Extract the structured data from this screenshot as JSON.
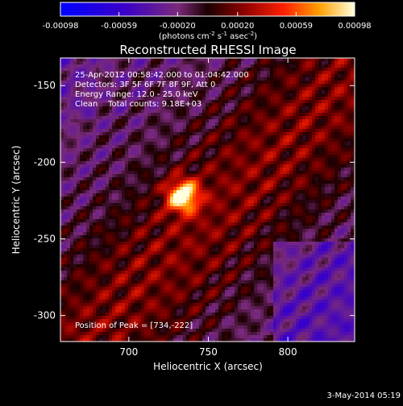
{
  "chart_data": {
    "type": "heatmap",
    "title": "Reconstructed RHESSI Image",
    "xlabel": "Heliocentric X (arcsec)",
    "ylabel": "Heliocentric Y (arcsec)",
    "xlim": [
      657,
      842
    ],
    "ylim": [
      -317,
      -132
    ],
    "x_ticks": [
      700,
      750,
      800
    ],
    "y_ticks": [
      -300,
      -250,
      -200,
      -150
    ],
    "annotations": [
      "25-Apr-2012 00:58:42.000 to 01:04:42.000",
      "Detectors: 3F 5F 6F 7F 8F 9F, Att 0",
      "Energy Range: 12.0 - 25.0 keV",
      "Clean    Total counts: 9.18E+03"
    ],
    "peak_label": "Position of Peak = [734,-222]",
    "peak": [
      734,
      -222
    ],
    "colorbar": {
      "min": -0.00098,
      "max": 0.00098,
      "ticks": [
        "-0.00098",
        "-0.00059",
        "-0.00020",
        "0.00020",
        "0.00059",
        "0.00098"
      ],
      "units_prefix": "(photons cm",
      "units_sup1": "-2",
      "units_mid": " s",
      "units_sup2": "-1",
      "units_mid2": " asec",
      "units_sup3": "-2",
      "units_suffix": ")"
    },
    "grid": false
  },
  "footer_date": "3-May-2014 05:19"
}
